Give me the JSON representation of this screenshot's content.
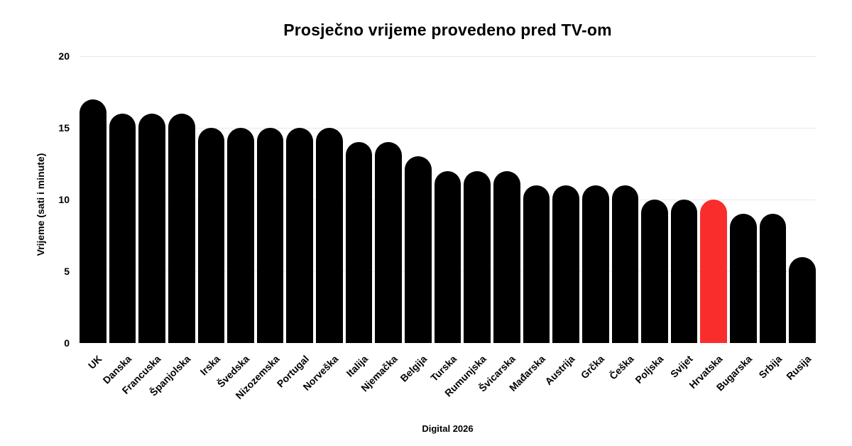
{
  "chart_data": {
    "type": "bar",
    "title": "Prosječno vrijeme provedeno pred TV-om",
    "ylabel": "Vrijeme (sati i minute)",
    "xlabel": "Digital 2026",
    "categories": [
      "UK",
      "Danska",
      "Francuska",
      "Španjolska",
      "Irska",
      "Švedska",
      "Nizozemska",
      "Portugal",
      "Norveška",
      "Italija",
      "Njemačka",
      "Belgija",
      "Turska",
      "Rumunjska",
      "Švicarska",
      "Mađarska",
      "Austrija",
      "Grčka",
      "Češka",
      "Poljska",
      "Svijet",
      "Hrvatska",
      "Bugarska",
      "Srbija",
      "Rusija"
    ],
    "values": [
      17,
      16,
      16,
      16,
      15,
      15,
      15,
      15,
      15,
      14,
      14,
      13,
      12,
      12,
      12,
      11,
      11,
      11,
      11,
      10,
      10,
      10,
      9,
      9,
      6
    ],
    "highlight_category": "Hrvatska",
    "bar_color": "#000000",
    "highlight_color": "#fa2d2d",
    "yticks": [
      0,
      5,
      10,
      15,
      20
    ],
    "ylim": [
      0,
      20
    ],
    "grid": true,
    "gridline_color": "#e9e9e9",
    "background": "#ffffff",
    "legend": "none"
  }
}
